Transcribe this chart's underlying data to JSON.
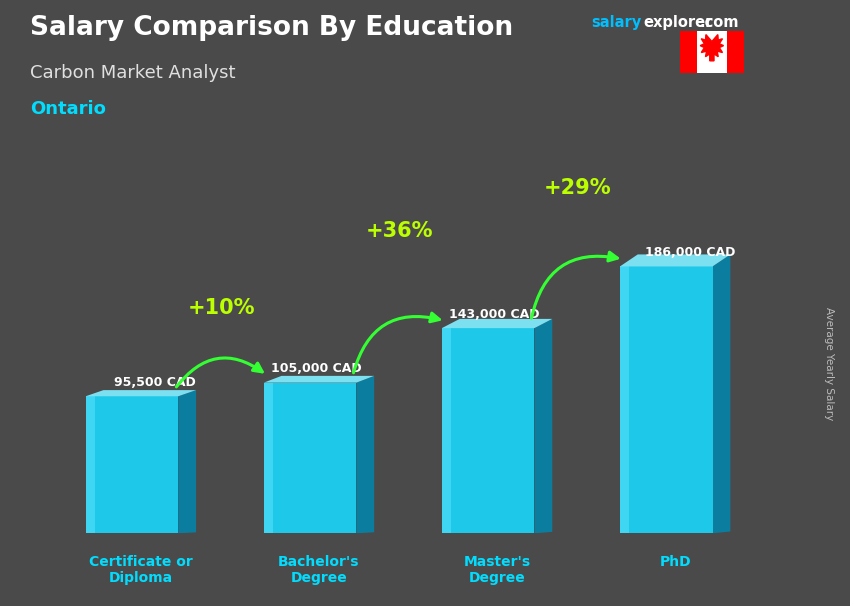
{
  "title": "Salary Comparison By Education",
  "subtitle": "Carbon Market Analyst",
  "location": "Ontario",
  "ylabel": "Average Yearly Salary",
  "categories": [
    "Certificate or\nDiploma",
    "Bachelor's\nDegree",
    "Master's\nDegree",
    "PhD"
  ],
  "values": [
    95500,
    105000,
    143000,
    186000
  ],
  "value_labels": [
    "95,500 CAD",
    "105,000 CAD",
    "143,000 CAD",
    "186,000 CAD"
  ],
  "pct_changes": [
    "+10%",
    "+36%",
    "+29%"
  ],
  "bar_face": "#1EC8E8",
  "bar_side": "#0B7EA0",
  "bar_top": "#7DE0F0",
  "bg_color": "#4a4a4a",
  "title_color": "#ffffff",
  "subtitle_color": "#e0e0e0",
  "location_color": "#00DDFF",
  "xaxis_color": "#00DDFF",
  "arrow_color": "#33FF33",
  "pct_color": "#BBFF00",
  "ylabel_color": "#bbbbbb",
  "val_label_color": "#ffffff",
  "watermark_salary": "#00BFFF",
  "watermark_rest": "#ffffff",
  "flag_red": "#FF0000",
  "flag_white": "#FFFFFF"
}
